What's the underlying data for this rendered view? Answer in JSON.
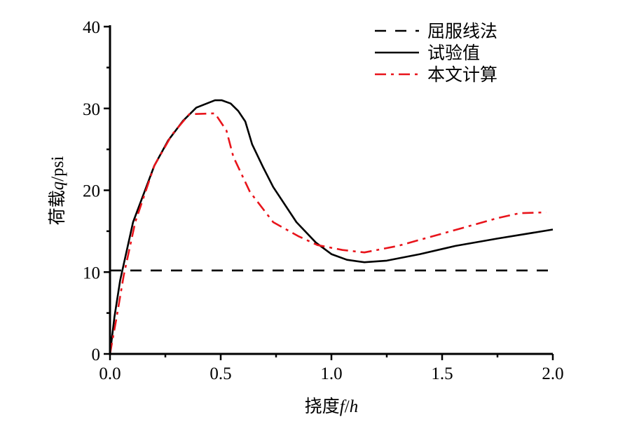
{
  "chart_data": {
    "type": "line",
    "title": "",
    "xlabel": {
      "prefix": "挠度",
      "var1": "f",
      "sep": "/",
      "var2": "h"
    },
    "ylabel": {
      "prefix": "荷载",
      "var1": "q",
      "suffix": "/psi"
    },
    "xlim": [
      0,
      2.0
    ],
    "ylim": [
      0,
      40
    ],
    "xticks": [
      "0.0",
      "0.5",
      "1.0",
      "1.5",
      "2.0"
    ],
    "xtick_values": [
      0,
      0.5,
      1.0,
      1.5,
      2.0
    ],
    "yticks": [
      "0",
      "10",
      "20",
      "30",
      "40"
    ],
    "ytick_values": [
      0,
      10,
      20,
      30,
      40
    ],
    "x_minor_step": 0.25,
    "y_minor_step": 5,
    "grid": false,
    "legend_position": "top-right",
    "series": [
      {
        "name": "屈服线法",
        "style": "dashed",
        "color": "#000000",
        "x": [
          0,
          2.0
        ],
        "y": [
          10.2,
          10.2
        ]
      },
      {
        "name": "试验值",
        "style": "solid",
        "color": "#000000",
        "x": [
          0,
          0.02,
          0.046,
          0.104,
          0.2,
          0.263,
          0.33,
          0.39,
          0.474,
          0.505,
          0.545,
          0.579,
          0.611,
          0.642,
          0.69,
          0.737,
          0.842,
          0.93,
          1.0,
          1.07,
          1.149,
          1.25,
          1.4,
          1.56,
          1.75,
          2.0
        ],
        "y": [
          0,
          4.5,
          9.0,
          16.1,
          23.0,
          26.1,
          28.5,
          30.1,
          31.0,
          31.0,
          30.6,
          29.7,
          28.4,
          25.6,
          22.9,
          20.4,
          16.1,
          13.6,
          12.2,
          11.5,
          11.2,
          11.4,
          12.2,
          13.2,
          14.1,
          15.2
        ]
      },
      {
        "name": "本文计算",
        "style": "dashdot",
        "color": "#e8141b",
        "x": [
          0,
          0.03,
          0.062,
          0.114,
          0.2,
          0.28,
          0.358,
          0.474,
          0.526,
          0.557,
          0.632,
          0.737,
          0.85,
          0.937,
          1.05,
          1.149,
          1.3,
          1.54,
          1.75,
          1.85,
          1.97
        ],
        "y": [
          0,
          4.5,
          9.6,
          16.1,
          23.0,
          26.8,
          29.3,
          29.4,
          27.3,
          24.1,
          19.8,
          16.1,
          14.4,
          13.3,
          12.7,
          12.4,
          13.2,
          15.0,
          16.6,
          17.2,
          17.3
        ]
      }
    ]
  }
}
